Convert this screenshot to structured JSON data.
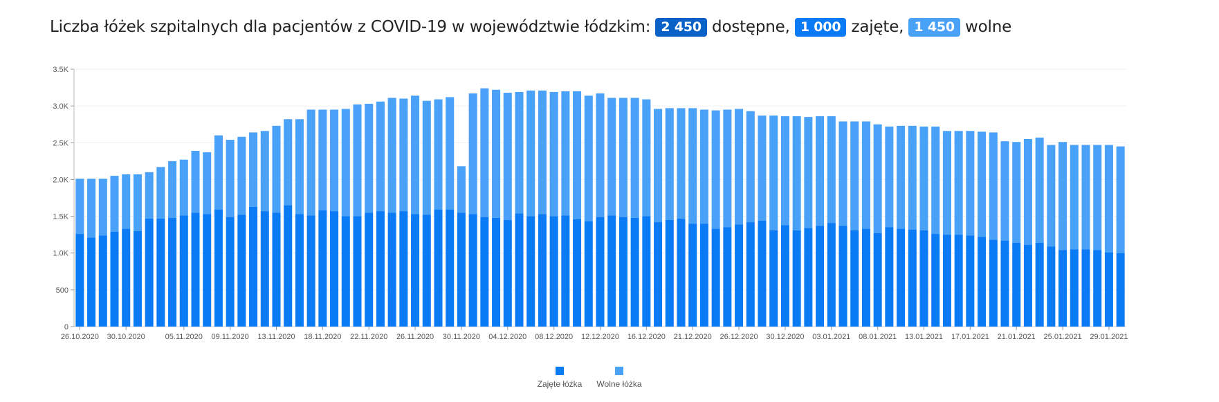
{
  "header": {
    "title_prefix": "Liczba łóżek szpitalnych dla pacjentów z COVID-19 w województwie łódzkim:",
    "total_value": "2 450",
    "total_label": "dostępne,",
    "occupied_value": "1 000",
    "occupied_label": "zajęte,",
    "free_value": "1 450",
    "free_label": "wolne"
  },
  "colors": {
    "occupied": "#0a7af5",
    "free": "#4aa1f8",
    "total_badge": "#0a62c8"
  },
  "chart_data": {
    "type": "bar",
    "stacked": true,
    "x_tick_labels": [
      "26.10.2020",
      "30.10.2020",
      "05.11.2020",
      "09.11.2020",
      "13.11.2020",
      "18.11.2020",
      "22.11.2020",
      "26.11.2020",
      "30.11.2020",
      "04.12.2020",
      "08.12.2020",
      "12.12.2020",
      "16.12.2020",
      "21.12.2020",
      "26.12.2020",
      "30.12.2020",
      "03.01.2021",
      "08.01.2021",
      "13.01.2021",
      "17.01.2021",
      "21.01.2021",
      "25.01.2021",
      "29.01.2021"
    ],
    "x_tick_positions": [
      0,
      4,
      9,
      13,
      17,
      21,
      25,
      29,
      33,
      37,
      41,
      45,
      49,
      53,
      57,
      61,
      65,
      69,
      73,
      77,
      81,
      85,
      89
    ],
    "y_ticks": [
      "0",
      "500",
      "1.0K",
      "1.5K",
      "2.0K",
      "2.5K",
      "3.0K",
      "3.5K"
    ],
    "ylim": [
      0,
      3500
    ],
    "legend": [
      "Zajęte łóżka",
      "Wolne łóżka"
    ],
    "legend_position": "bottom",
    "series": [
      {
        "name": "Zajęte łóżka",
        "values": [
          1260,
          1210,
          1240,
          1290,
          1330,
          1300,
          1470,
          1470,
          1480,
          1510,
          1550,
          1530,
          1590,
          1490,
          1520,
          1630,
          1570,
          1550,
          1650,
          1530,
          1510,
          1580,
          1570,
          1500,
          1500,
          1550,
          1570,
          1550,
          1570,
          1530,
          1520,
          1590,
          1590,
          1550,
          1530,
          1490,
          1480,
          1450,
          1540,
          1500,
          1530,
          1500,
          1510,
          1460,
          1430,
          1490,
          1510,
          1490,
          1480,
          1500,
          1420,
          1450,
          1470,
          1400,
          1400,
          1330,
          1350,
          1390,
          1420,
          1440,
          1310,
          1380,
          1310,
          1340,
          1370,
          1410,
          1370,
          1310,
          1330,
          1270,
          1350,
          1330,
          1320,
          1310,
          1260,
          1250,
          1250,
          1240,
          1220,
          1180,
          1170,
          1140,
          1110,
          1140,
          1090,
          1040,
          1050,
          1050,
          1040,
          1010,
          1000
        ]
      },
      {
        "name": "Wolne łóżka",
        "values": [
          750,
          800,
          770,
          760,
          740,
          770,
          630,
          700,
          770,
          760,
          840,
          840,
          1010,
          1050,
          1060,
          1010,
          1090,
          1180,
          1170,
          1290,
          1440,
          1370,
          1380,
          1460,
          1520,
          1480,
          1490,
          1560,
          1530,
          1610,
          1550,
          1500,
          1530,
          630,
          1640,
          1750,
          1740,
          1730,
          1650,
          1710,
          1680,
          1690,
          1690,
          1740,
          1710,
          1680,
          1600,
          1620,
          1630,
          1590,
          1540,
          1520,
          1500,
          1570,
          1550,
          1610,
          1600,
          1570,
          1510,
          1430,
          1560,
          1480,
          1550,
          1510,
          1490,
          1450,
          1420,
          1480,
          1460,
          1480,
          1370,
          1400,
          1410,
          1410,
          1460,
          1410,
          1410,
          1420,
          1430,
          1460,
          1350,
          1370,
          1440,
          1430,
          1380,
          1470,
          1420,
          1420,
          1430,
          1460,
          1450
        ]
      }
    ]
  }
}
